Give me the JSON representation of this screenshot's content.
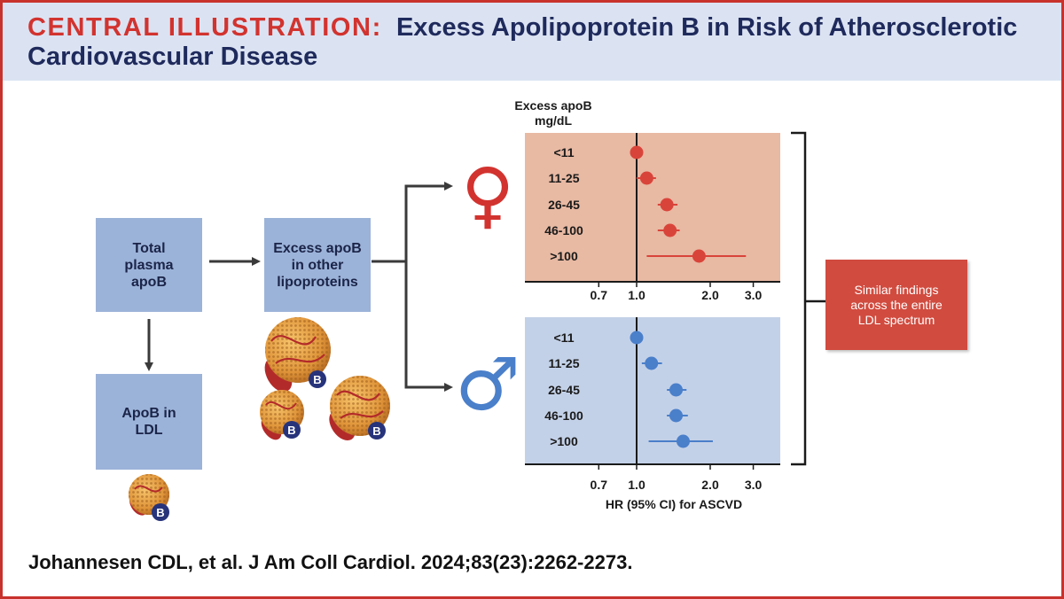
{
  "header": {
    "label": "CENTRAL ILLUSTRATION:",
    "title": "Excess Apolipoprotein B in Risk of Atherosclerotic Cardiovascular Disease"
  },
  "flow": {
    "box_total": "Total plasma apoB",
    "box_excess": "Excess apoB in other lipoproteins",
    "box_ldl": "ApoB in LDL",
    "badge_letter": "B"
  },
  "sex_symbols": {
    "female": "♀",
    "male": "♂"
  },
  "summary_box": "Similar findings across the entire LDL spectrum",
  "citation": "Johannesen CDL, et al. J Am Coll Cardiol. 2024;83(23):2262-2273.",
  "colors": {
    "accent_red": "#d2332f",
    "navy": "#1f2a5c",
    "female_panel": "#e8b9a3",
    "male_panel": "#c3d1e8",
    "female_marker": "#d9443a",
    "male_marker": "#4a7fca",
    "box_blue": "#9cb3d9"
  },
  "chart_data": [
    {
      "type": "forest",
      "group": "female",
      "ylabel": "Excess apoB mg/dL",
      "categories": [
        "<11",
        "11-25",
        "26-45",
        "46-100",
        ">100"
      ],
      "hr": [
        1.0,
        1.1,
        1.33,
        1.37,
        1.8
      ],
      "ci_low": [
        1.0,
        1.0,
        1.22,
        1.22,
        1.1
      ],
      "ci_high": [
        1.0,
        1.2,
        1.47,
        1.5,
        2.8
      ],
      "x_scale": "log",
      "xticks": [
        0.7,
        1.0,
        2.0,
        3.0
      ],
      "xtick_labels": [
        "0.7",
        "1.0",
        "2.0",
        "3.0"
      ],
      "reference_line": 1.0
    },
    {
      "type": "forest",
      "group": "male",
      "xlabel": "HR (95% CI) for ASCVD",
      "categories": [
        "<11",
        "11-25",
        "26-45",
        "46-100",
        ">100"
      ],
      "hr": [
        1.0,
        1.15,
        1.45,
        1.45,
        1.55
      ],
      "ci_low": [
        1.0,
        1.05,
        1.33,
        1.33,
        1.12
      ],
      "ci_high": [
        1.0,
        1.27,
        1.6,
        1.62,
        2.05
      ],
      "x_scale": "log",
      "xticks": [
        0.7,
        1.0,
        2.0,
        3.0
      ],
      "xtick_labels": [
        "0.7",
        "1.0",
        "2.0",
        "3.0"
      ],
      "reference_line": 1.0
    }
  ]
}
